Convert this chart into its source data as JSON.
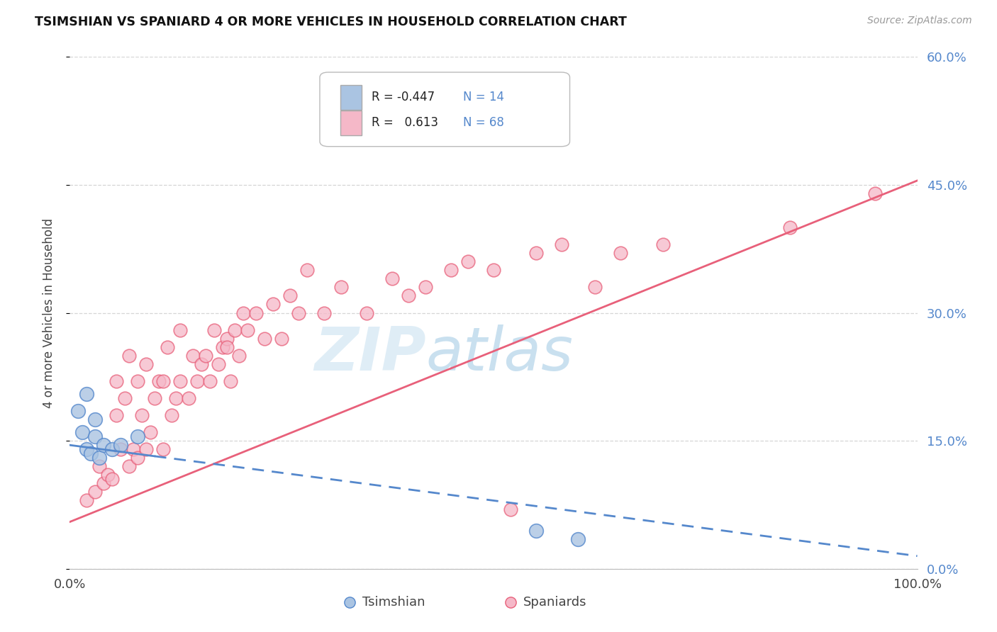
{
  "title": "TSIMSHIAN VS SPANIARD 4 OR MORE VEHICLES IN HOUSEHOLD CORRELATION CHART",
  "source": "Source: ZipAtlas.com",
  "ylabel": "4 or more Vehicles in Household",
  "legend_labels": [
    "Tsimshian",
    "Spaniards"
  ],
  "tsimshian_color": "#aac4e2",
  "spaniard_color": "#f5b8c8",
  "tsimshian_line_color": "#5588cc",
  "spaniard_line_color": "#e8607a",
  "r_tsimshian": -0.447,
  "n_tsimshian": 14,
  "r_spaniard": 0.613,
  "n_spaniard": 68,
  "xlim": [
    0,
    100
  ],
  "ylim": [
    0,
    60
  ],
  "ytick_labels": [
    "0.0%",
    "15.0%",
    "30.0%",
    "45.0%",
    "60.0%"
  ],
  "ytick_values": [
    0,
    15,
    30,
    45,
    60
  ],
  "xtick_labels": [
    "0.0%",
    "100.0%"
  ],
  "xtick_values": [
    0,
    100
  ],
  "watermark_zip": "ZIP",
  "watermark_atlas": "atlas",
  "background_color": "#ffffff",
  "grid_color": "#cccccc",
  "tsimshian_scatter_x": [
    1.0,
    1.5,
    2.0,
    2.0,
    2.5,
    3.0,
    3.0,
    3.5,
    4.0,
    5.0,
    6.0,
    8.0,
    55.0,
    60.0
  ],
  "tsimshian_scatter_y": [
    18.5,
    16.0,
    20.5,
    14.0,
    13.5,
    15.5,
    17.5,
    13.0,
    14.5,
    14.0,
    14.5,
    15.5,
    4.5,
    3.5
  ],
  "spaniard_scatter_x": [
    2.0,
    3.0,
    3.5,
    4.0,
    4.5,
    5.0,
    5.5,
    5.5,
    6.0,
    6.5,
    7.0,
    7.0,
    7.5,
    8.0,
    8.0,
    8.5,
    9.0,
    9.0,
    9.5,
    10.0,
    10.5,
    11.0,
    11.0,
    11.5,
    12.0,
    12.5,
    13.0,
    13.0,
    14.0,
    14.5,
    15.0,
    15.5,
    16.0,
    16.5,
    17.0,
    17.5,
    18.0,
    18.5,
    18.5,
    19.0,
    19.5,
    20.0,
    20.5,
    21.0,
    22.0,
    23.0,
    24.0,
    25.0,
    26.0,
    27.0,
    28.0,
    30.0,
    32.0,
    35.0,
    38.0,
    40.0,
    42.0,
    45.0,
    47.0,
    50.0,
    52.0,
    55.0,
    58.0,
    62.0,
    65.0,
    70.0,
    85.0,
    95.0
  ],
  "spaniard_scatter_y": [
    8.0,
    9.0,
    12.0,
    10.0,
    11.0,
    10.5,
    18.0,
    22.0,
    14.0,
    20.0,
    12.0,
    25.0,
    14.0,
    13.0,
    22.0,
    18.0,
    14.0,
    24.0,
    16.0,
    20.0,
    22.0,
    14.0,
    22.0,
    26.0,
    18.0,
    20.0,
    22.0,
    28.0,
    20.0,
    25.0,
    22.0,
    24.0,
    25.0,
    22.0,
    28.0,
    24.0,
    26.0,
    27.0,
    26.0,
    22.0,
    28.0,
    25.0,
    30.0,
    28.0,
    30.0,
    27.0,
    31.0,
    27.0,
    32.0,
    30.0,
    35.0,
    30.0,
    33.0,
    30.0,
    34.0,
    32.0,
    33.0,
    35.0,
    36.0,
    35.0,
    7.0,
    37.0,
    38.0,
    33.0,
    37.0,
    38.0,
    40.0,
    44.0
  ],
  "spaniard_line_x0": 0,
  "spaniard_line_y0": 5.5,
  "spaniard_line_x1": 100,
  "spaniard_line_y1": 45.5,
  "tsimshian_line_x0": 0,
  "tsimshian_line_y0": 14.5,
  "tsimshian_line_x1": 100,
  "tsimshian_line_y1": 1.5,
  "tsimshian_solid_end": 10
}
